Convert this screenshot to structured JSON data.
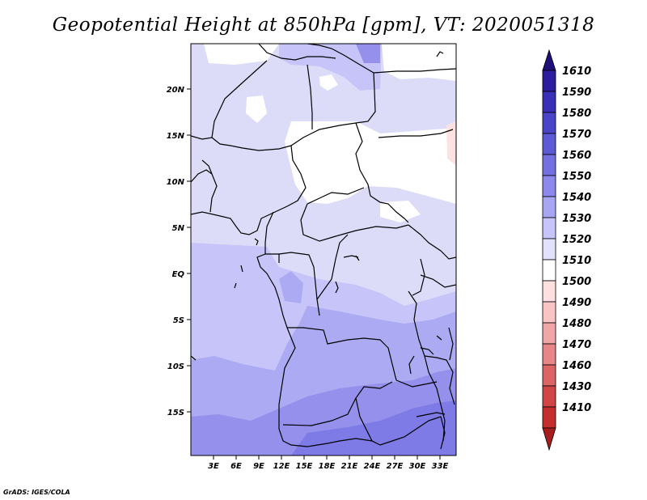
{
  "title": "Geopotential Height at 850hPa [gpm], VT: 2020051318",
  "credit": "GrADS: IGES/COLA",
  "lat_labels": [
    "20N",
    "15N",
    "10N",
    "5N",
    "EQ",
    "5S",
    "10S",
    "15S"
  ],
  "lon_labels": [
    "3E",
    "6E",
    "9E",
    "12E",
    "15E",
    "18E",
    "21E",
    "24E",
    "27E",
    "30E",
    "33E"
  ],
  "colorbar": {
    "labels": [
      "1610",
      "1590",
      "1580",
      "1570",
      "1560",
      "1550",
      "1540",
      "1530",
      "1520",
      "1510",
      "1500",
      "1490",
      "1480",
      "1470",
      "1460",
      "1430",
      "1410"
    ],
    "colors": [
      "#1e1078",
      "#2c1c9e",
      "#3a30b8",
      "#4a44c8",
      "#5e5ad6",
      "#7470e2",
      "#8c88ec",
      "#a8a6f2",
      "#c6c4f8",
      "#e2e2fc",
      "#ffffff",
      "#fde0e0",
      "#f8c4c4",
      "#f0a6a6",
      "#e68686",
      "#dc6464",
      "#d04646",
      "#c42e2e",
      "#a81e1e"
    ]
  }
}
